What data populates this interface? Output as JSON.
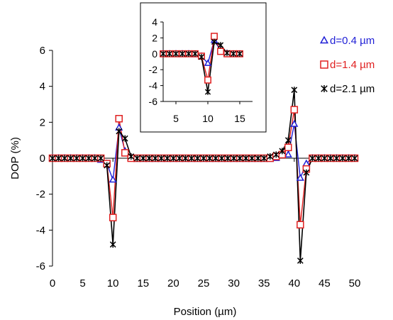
{
  "chart_data": {
    "type": "line",
    "title": "",
    "xlabel": "Position (µm)",
    "ylabel": "DOP (%)",
    "xlim": [
      0,
      50
    ],
    "ylim": [
      -6,
      6
    ],
    "xticks": [
      0,
      5,
      10,
      15,
      20,
      25,
      30,
      35,
      40,
      45,
      50
    ],
    "yticks": [
      -6,
      -4,
      -2,
      0,
      2,
      4,
      6
    ],
    "grid": false,
    "legend_position": "right",
    "x": [
      0,
      1,
      2,
      3,
      4,
      5,
      6,
      7,
      8,
      9,
      10,
      11,
      12,
      13,
      14,
      15,
      16,
      17,
      18,
      19,
      20,
      21,
      22,
      23,
      24,
      25,
      26,
      27,
      28,
      29,
      30,
      31,
      32,
      33,
      34,
      35,
      36,
      37,
      38,
      39,
      40,
      41,
      42,
      43,
      44,
      45,
      46,
      47,
      48,
      49,
      50
    ],
    "series": [
      {
        "name": "d=0.4 µm",
        "color": "#1f1fd6",
        "marker": "triangle",
        "values": [
          0,
          0,
          0,
          0,
          0,
          0,
          0,
          0,
          -0.1,
          -0.3,
          -1.2,
          1.7,
          0.4,
          0.05,
          -0.05,
          -0.05,
          -0.05,
          -0.05,
          -0.05,
          -0.05,
          -0.05,
          -0.05,
          -0.05,
          -0.05,
          -0.05,
          -0.05,
          -0.05,
          -0.05,
          -0.05,
          -0.05,
          -0.05,
          -0.05,
          -0.05,
          -0.05,
          -0.05,
          -0.05,
          -0.05,
          0,
          0.2,
          0.2,
          1.9,
          -1.1,
          -0.3,
          0,
          0,
          0,
          0,
          0,
          0,
          0,
          0
        ]
      },
      {
        "name": "d=1.4 µm",
        "color": "#e02020",
        "marker": "square",
        "values": [
          0,
          0,
          0,
          0,
          0,
          0,
          0,
          0,
          0,
          -0.3,
          -3.3,
          2.2,
          0.3,
          0,
          0,
          0,
          0,
          0,
          0,
          0,
          0,
          0,
          0,
          0,
          0,
          0,
          0,
          0,
          0,
          0,
          0,
          0,
          0,
          0,
          0,
          0,
          0,
          0.1,
          0.2,
          0.6,
          2.7,
          -3.7,
          -0.6,
          0,
          0,
          0,
          0,
          0,
          0,
          0,
          0
        ]
      },
      {
        "name": "d=2.1 µm",
        "color": "#000000",
        "marker": "star",
        "values": [
          0,
          0,
          0,
          0,
          0,
          0,
          0,
          0,
          0,
          -0.4,
          -4.8,
          1.5,
          1.1,
          0.1,
          0,
          0,
          0,
          0,
          0,
          0,
          0,
          0,
          0,
          0,
          0,
          0,
          0,
          0,
          0,
          0,
          0,
          0,
          0,
          0,
          0,
          0,
          0.1,
          0.2,
          0.4,
          1.0,
          3.8,
          -5.7,
          -0.8,
          0,
          0,
          0,
          0,
          0,
          0,
          0,
          0
        ]
      }
    ],
    "inset": {
      "xlim": [
        3,
        17
      ],
      "ylim": [
        -6,
        4
      ],
      "xticks": [
        5,
        10,
        15
      ],
      "yticks": [
        -6,
        -4,
        -2,
        0,
        2,
        4
      ],
      "x": [
        3,
        4,
        5,
        6,
        7,
        8,
        9,
        10,
        11,
        12,
        13,
        14,
        15
      ],
      "series": [
        {
          "name": "d=0.4 µm",
          "values": [
            0,
            0,
            0,
            0,
            0,
            -0.1,
            -0.3,
            -1.2,
            1.7,
            0.4,
            0.05,
            -0.05,
            -0.05
          ]
        },
        {
          "name": "d=1.4 µm",
          "values": [
            0,
            0,
            0,
            0,
            0,
            0,
            -0.3,
            -3.3,
            2.2,
            0.3,
            0,
            0,
            0
          ]
        },
        {
          "name": "d=2.1 µm",
          "values": [
            0,
            0,
            0,
            0,
            0,
            0,
            -0.4,
            -4.8,
            1.5,
            1.1,
            0.1,
            0,
            0
          ]
        }
      ]
    }
  }
}
